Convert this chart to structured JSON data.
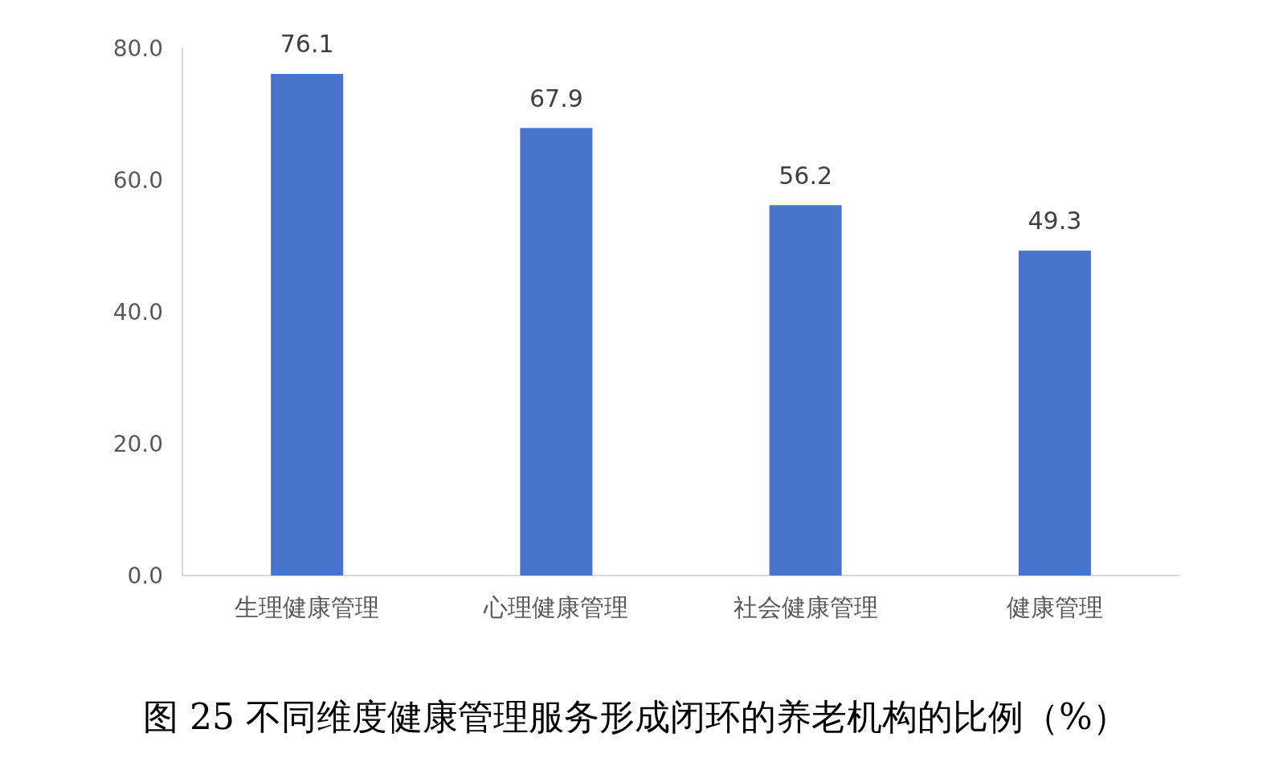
{
  "chart_data": {
    "type": "bar",
    "title": "图 25 不同维度健康管理服务形成闭环的养老机构的比例（%）",
    "categories": [
      "生理健康管理",
      "心理健康管理",
      "社会健康管理",
      "健康管理"
    ],
    "values": [
      76.1,
      67.9,
      56.2,
      49.3
    ],
    "color": "#4874cb",
    "ylim": [
      0,
      80
    ],
    "yticks": [
      {
        "value": 0,
        "label": "0.0"
      },
      {
        "value": 20,
        "label": "20.0"
      },
      {
        "value": 40,
        "label": "40.0"
      },
      {
        "value": 60,
        "label": "60.0"
      },
      {
        "value": 80,
        "label": "80.0"
      }
    ],
    "data_labels": true,
    "grid": false
  }
}
